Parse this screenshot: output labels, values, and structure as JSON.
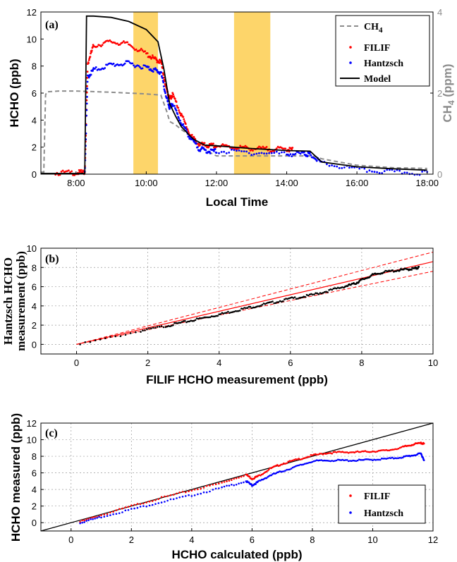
{
  "chart_data": [
    {
      "panel": "(a)",
      "type": "line",
      "xlabel": "Local Time",
      "ylabel": "HCHO (ppb)",
      "ylabel_right": "CH4 (ppm)",
      "ylabel_right_main": "CH",
      "ylabel_right_sub": "4",
      "ylabel_right_tail": " (ppm)",
      "x_ticks": [
        "8:00",
        "10:00",
        "12:00",
        "14:00",
        "16:00",
        "18:00"
      ],
      "xlim": [
        "7:00",
        "18:10"
      ],
      "ylim": [
        0,
        12
      ],
      "y_ticks": [
        0,
        2,
        4,
        6,
        8,
        10,
        12
      ],
      "y2lim": [
        0,
        4
      ],
      "y2_ticks": [
        0,
        2,
        4
      ],
      "grid": false,
      "legend": "top-right",
      "shaded_intervals": [
        [
          "9:38",
          "10:20"
        ],
        [
          "12:30",
          "13:32"
        ]
      ],
      "series": [
        {
          "name": "CH4",
          "name_main": "CH",
          "name_sub": "4",
          "axis": "right",
          "style": "dashed",
          "color": "#8c8c8c",
          "x": [
            "7:00",
            "7:05",
            "7:08",
            "7:10",
            "7:30",
            "8:00",
            "9:00",
            "10:00",
            "10:25",
            "10:35",
            "10:40",
            "10:50",
            "11:00",
            "11:20",
            "11:40",
            "12:00",
            "13:00",
            "14:00",
            "14:45",
            "15:00",
            "16:00",
            "17:00",
            "18:00"
          ],
          "y": [
            0.05,
            0.05,
            1.95,
            2.03,
            2.05,
            2.05,
            2.02,
            1.98,
            1.95,
            1.55,
            1.3,
            1.22,
            1.1,
            0.9,
            0.6,
            0.45,
            0.45,
            0.45,
            0.45,
            0.38,
            0.22,
            0.16,
            0.14
          ]
        },
        {
          "name": "FILIF",
          "axis": "left",
          "style": "markers",
          "color": "#ff0000",
          "x": [
            "7:25",
            "8:00",
            "8:15",
            "8:20",
            "8:30",
            "9:00",
            "9:30",
            "10:00",
            "10:15",
            "10:25",
            "10:35",
            "10:40",
            "10:45",
            "11:00",
            "11:15",
            "11:30",
            "11:45",
            "12:00",
            "12:30",
            "13:00",
            "13:30",
            "14:00",
            "14:10"
          ],
          "y": [
            0.1,
            0.1,
            0.15,
            8.2,
            9.5,
            9.8,
            9.6,
            8.9,
            8.5,
            8.3,
            6.2,
            5.6,
            5.9,
            4.4,
            2.9,
            2.2,
            2.1,
            2.1,
            2.0,
            1.9,
            1.85,
            1.85,
            1.8
          ]
        },
        {
          "name": "Hantzsch",
          "axis": "left",
          "style": "markers",
          "color": "#0000ff",
          "x": [
            "8:15",
            "8:20",
            "8:30",
            "9:00",
            "9:30",
            "10:00",
            "10:15",
            "10:25",
            "10:35",
            "10:40",
            "10:45",
            "11:00",
            "11:15",
            "11:30",
            "11:45",
            "12:00",
            "13:00",
            "14:00",
            "14:30",
            "14:40",
            "15:00",
            "16:00",
            "17:00",
            "18:00"
          ],
          "y": [
            0.1,
            7.2,
            7.7,
            8.1,
            8.2,
            7.9,
            7.7,
            7.5,
            5.6,
            4.9,
            5.2,
            3.8,
            2.7,
            1.9,
            1.7,
            1.7,
            1.6,
            1.5,
            1.5,
            1.45,
            0.8,
            0.35,
            0.15,
            0.1
          ]
        },
        {
          "name": "Model",
          "axis": "left",
          "style": "solid",
          "color": "#000000",
          "x": [
            "7:00",
            "8:15",
            "8:18",
            "8:30",
            "9:00",
            "9:30",
            "10:00",
            "10:20",
            "10:30",
            "10:40",
            "10:50",
            "11:00",
            "11:20",
            "11:40",
            "12:00",
            "13:00",
            "14:00",
            "14:40",
            "15:00",
            "16:00",
            "17:00",
            "18:00"
          ],
          "y": [
            0.05,
            0.05,
            11.7,
            11.7,
            11.6,
            11.3,
            10.7,
            9.8,
            7.8,
            5.2,
            4.3,
            3.5,
            2.6,
            2.15,
            2.1,
            1.9,
            1.75,
            1.7,
            0.9,
            0.55,
            0.4,
            0.3
          ]
        }
      ]
    },
    {
      "panel": "(b)",
      "type": "scatter",
      "xlabel": "FILIF HCHO measurement (ppb)",
      "ylabel": "Hantzsch HCHO measurement (ppb)",
      "ylabel_line1": "Hantzsch HCHO",
      "ylabel_line2": "measurement (ppb)",
      "xlim": [
        -1,
        10
      ],
      "ylim": [
        -1,
        10
      ],
      "x_ticks": [
        0,
        2,
        4,
        6,
        8,
        10
      ],
      "y_ticks": [
        0,
        2,
        4,
        6,
        8,
        10
      ],
      "grid": true,
      "fit_lines": {
        "color": "#ff0000",
        "slope": 0.86,
        "dashed_slopes": [
          0.96,
          0.76
        ]
      },
      "series": [
        {
          "name": "",
          "color": "#000000",
          "x": [
            0.1,
            1.8,
            2.5,
            3.0,
            3.5,
            4.0,
            4.5,
            5.0,
            5.5,
            6.0,
            6.5,
            7.0,
            7.5,
            7.8,
            8.0,
            8.3,
            8.6,
            9.0,
            9.3,
            9.5,
            9.6
          ],
          "y": [
            0.0,
            1.4,
            1.9,
            2.3,
            2.7,
            3.1,
            3.55,
            3.95,
            4.35,
            4.75,
            5.05,
            5.5,
            6.0,
            6.3,
            6.7,
            7.2,
            7.5,
            7.7,
            7.8,
            7.9,
            8.0
          ]
        }
      ]
    },
    {
      "panel": "(c)",
      "type": "scatter",
      "xlabel": "HCHO calculated (ppb)",
      "ylabel": "HCHO measured (ppb)",
      "xlim": [
        -1,
        12
      ],
      "ylim": [
        -1,
        12
      ],
      "x_ticks": [
        0,
        2,
        4,
        6,
        8,
        10,
        12
      ],
      "y_ticks": [
        0,
        2,
        4,
        6,
        8,
        10,
        12
      ],
      "grid": true,
      "legend": "bottom-right",
      "one_to_one_line": true,
      "series": [
        {
          "name": "FILIF",
          "color": "#ff0000",
          "x": [
            0.3,
            1.0,
            2.0,
            3.0,
            4.0,
            5.0,
            5.8,
            6.0,
            6.2,
            6.6,
            7.0,
            7.5,
            8.0,
            8.5,
            9.0,
            9.5,
            10.0,
            10.5,
            11.0,
            11.3,
            11.6,
            11.7
          ],
          "y": [
            0.1,
            0.9,
            2.0,
            3.0,
            3.9,
            4.8,
            5.8,
            5.3,
            5.6,
            6.5,
            7.1,
            7.6,
            8.1,
            8.4,
            8.5,
            8.5,
            8.6,
            8.7,
            9.1,
            9.4,
            9.6,
            9.5
          ]
        },
        {
          "name": "Hantzsch",
          "color": "#0000ff",
          "x": [
            0.3,
            1.0,
            2.0,
            3.0,
            4.0,
            5.0,
            5.8,
            6.0,
            6.2,
            6.6,
            7.0,
            7.5,
            8.0,
            8.5,
            9.0,
            9.5,
            10.0,
            10.5,
            11.0,
            11.3,
            11.6,
            11.7
          ],
          "y": [
            0.0,
            0.7,
            1.6,
            2.5,
            3.3,
            4.2,
            5.0,
            4.5,
            4.9,
            5.7,
            6.2,
            6.8,
            7.4,
            7.5,
            7.5,
            7.5,
            7.6,
            7.7,
            7.9,
            8.1,
            8.3,
            7.6
          ]
        }
      ]
    }
  ]
}
